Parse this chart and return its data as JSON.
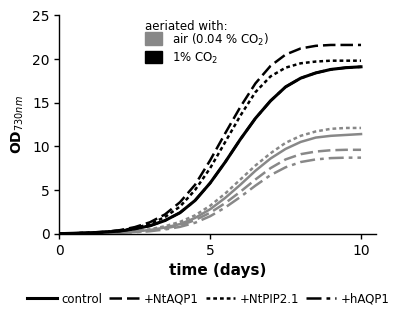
{
  "title": "",
  "xlabel": "time (days)",
  "ylabel": "OD$_{730nm}$",
  "xlim": [
    0,
    10.5
  ],
  "ylim": [
    0,
    25
  ],
  "xticks": [
    0,
    5,
    10
  ],
  "yticks": [
    0,
    5,
    10,
    15,
    20,
    25
  ],
  "background_color": "#ffffff",
  "x": [
    0,
    0.5,
    1.0,
    1.5,
    2.0,
    2.5,
    3.0,
    3.5,
    4.0,
    4.5,
    5.0,
    5.5,
    6.0,
    6.5,
    7.0,
    7.5,
    8.0,
    8.5,
    9.0,
    9.5,
    10.0
  ],
  "black_control": [
    0,
    0.05,
    0.1,
    0.18,
    0.3,
    0.55,
    0.9,
    1.5,
    2.4,
    3.8,
    5.8,
    8.2,
    10.8,
    13.2,
    15.2,
    16.8,
    17.8,
    18.4,
    18.8,
    19.0,
    19.1
  ],
  "black_NtAQP1": [
    0,
    0.05,
    0.12,
    0.22,
    0.4,
    0.75,
    1.3,
    2.2,
    3.6,
    5.6,
    8.4,
    11.5,
    14.5,
    17.2,
    19.2,
    20.5,
    21.2,
    21.5,
    21.6,
    21.6,
    21.6
  ],
  "black_NtPIP2.1": [
    0,
    0.05,
    0.1,
    0.2,
    0.35,
    0.65,
    1.1,
    1.9,
    3.1,
    5.0,
    7.5,
    10.5,
    13.5,
    16.2,
    18.0,
    19.0,
    19.5,
    19.7,
    19.8,
    19.8,
    19.8
  ],
  "black_hAQP1": [
    0,
    0.05,
    0.1,
    0.18,
    0.3,
    0.55,
    0.9,
    1.5,
    2.4,
    3.8,
    5.8,
    8.2,
    10.8,
    13.2,
    15.2,
    16.8,
    17.8,
    18.4,
    18.8,
    19.0,
    19.1
  ],
  "gray_NtPIP2.1": [
    0,
    0.02,
    0.05,
    0.1,
    0.18,
    0.3,
    0.5,
    0.85,
    1.35,
    2.1,
    3.2,
    4.6,
    6.2,
    7.8,
    9.2,
    10.4,
    11.2,
    11.7,
    12.0,
    12.1,
    12.1
  ],
  "gray_control": [
    0,
    0.02,
    0.05,
    0.08,
    0.15,
    0.25,
    0.42,
    0.7,
    1.1,
    1.8,
    2.8,
    4.1,
    5.6,
    7.2,
    8.6,
    9.7,
    10.5,
    11.0,
    11.2,
    11.3,
    11.4
  ],
  "gray_NtAQP1": [
    0,
    0.02,
    0.04,
    0.07,
    0.12,
    0.2,
    0.35,
    0.6,
    0.95,
    1.55,
    2.4,
    3.5,
    4.8,
    6.2,
    7.5,
    8.5,
    9.1,
    9.4,
    9.55,
    9.6,
    9.6
  ],
  "gray_hAQP1": [
    0,
    0.02,
    0.04,
    0.06,
    0.1,
    0.17,
    0.28,
    0.48,
    0.78,
    1.25,
    2.0,
    3.0,
    4.2,
    5.5,
    6.7,
    7.6,
    8.2,
    8.5,
    8.65,
    8.7,
    8.7
  ],
  "lw": 1.8,
  "gray_color": "#888888",
  "black_color": "#000000",
  "legend_items": [
    "control",
    "+NtAQP1",
    "+NtPIP2.1",
    "+hAQP1"
  ]
}
